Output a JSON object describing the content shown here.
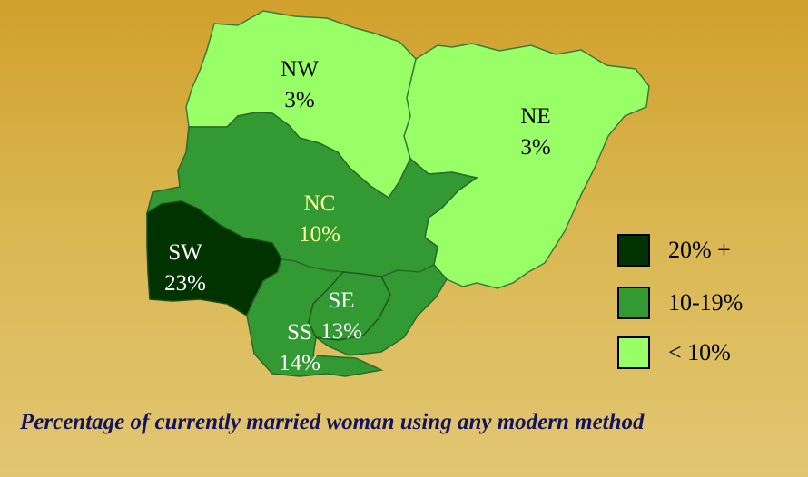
{
  "map": {
    "regions": [
      {
        "id": "NW",
        "code": "NW",
        "value": "3%",
        "category": "< 10%",
        "fill": "#99ff66",
        "text_color": "#000000"
      },
      {
        "id": "NE",
        "code": "NE",
        "value": "3%",
        "category": "< 10%",
        "fill": "#99ff66",
        "text_color": "#000000"
      },
      {
        "id": "NC",
        "code": "NC",
        "value": "10%",
        "category": "10-19%",
        "fill": "#339933",
        "text_color": "#ffff99"
      },
      {
        "id": "SW",
        "code": "SW",
        "value": "23%",
        "category": "20% +",
        "fill": "#003300",
        "text_color": "#ffffff"
      },
      {
        "id": "SS",
        "code": "SS",
        "value": "14%",
        "category": "10-19%",
        "fill": "#339933",
        "text_color": "#ffffff"
      },
      {
        "id": "SE",
        "code": "SE",
        "value": "13%",
        "category": "10-19%",
        "fill": "#339933",
        "text_color": "#ffffff"
      }
    ],
    "legend": [
      {
        "label": "20% +",
        "color": "#003300"
      },
      {
        "label": "10-19%",
        "color": "#339933"
      },
      {
        "label": "< 10%",
        "color": "#99ff66"
      }
    ],
    "caption": "Percentage of currently married woman using any modern method"
  }
}
